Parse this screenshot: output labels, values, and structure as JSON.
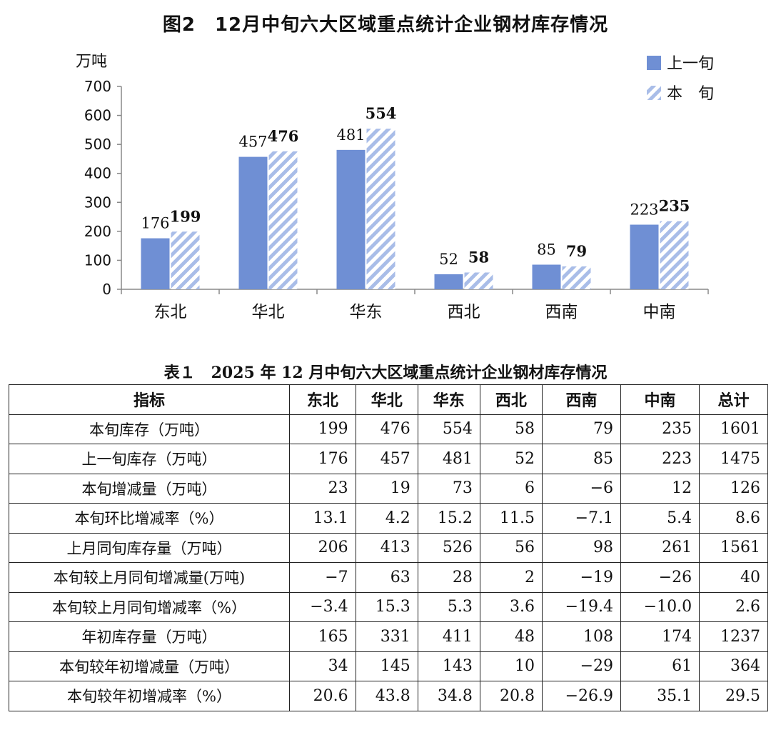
{
  "chart_data": {
    "type": "bar",
    "title": "图2　12月中旬六大区域重点统计企业钢材库存情况",
    "ylabel": "万吨",
    "xlabel": "",
    "ylim": [
      0,
      700
    ],
    "yticks": [
      0,
      100,
      200,
      300,
      400,
      500,
      600,
      700
    ],
    "categories": [
      "东北",
      "华北",
      "华东",
      "西北",
      "西南",
      "中南"
    ],
    "series": [
      {
        "name": "上一旬",
        "values": [
          176,
          457,
          481,
          52,
          85,
          223
        ],
        "color": "#6f8fd4",
        "pattern": "solid"
      },
      {
        "name": "本　旬",
        "values": [
          199,
          476,
          554,
          58,
          79,
          235
        ],
        "color": "#a9bde8",
        "pattern": "hatched"
      }
    ],
    "legend": "top-right",
    "grid": false
  },
  "table": {
    "title": "表１　2025 年 12 月中旬六大区域重点统计企业钢材库存情况",
    "headers": [
      "指标",
      "东北",
      "华北",
      "华东",
      "西北",
      "西南",
      "中南",
      "总计"
    ],
    "rows": [
      [
        "本旬库存（万吨）",
        "199",
        "476",
        "554",
        "58",
        "79",
        "235",
        "1601"
      ],
      [
        "上一旬库存（万吨）",
        "176",
        "457",
        "481",
        "52",
        "85",
        "223",
        "1475"
      ],
      [
        "本旬增减量（万吨）",
        "23",
        "19",
        "73",
        "6",
        "−6",
        "12",
        "126"
      ],
      [
        "本旬环比增减率（%）",
        "13.1",
        "4.2",
        "15.2",
        "11.5",
        "−7.1",
        "5.4",
        "8.6"
      ],
      [
        "上月同旬库存量（万吨）",
        "206",
        "413",
        "526",
        "56",
        "98",
        "261",
        "1561"
      ],
      [
        "本旬较上月同旬增减量(万吨)",
        "−7",
        "63",
        "28",
        "2",
        "−19",
        "−26",
        "40"
      ],
      [
        "本旬较上月同旬增减率（%）",
        "−3.4",
        "15.3",
        "5.3",
        "3.6",
        "−19.4",
        "−10.0",
        "2.6"
      ],
      [
        "年初库存量（万吨）",
        "165",
        "331",
        "411",
        "48",
        "108",
        "174",
        "1237"
      ],
      [
        "本旬较年初增减量（万吨）",
        "34",
        "145",
        "143",
        "10",
        "−29",
        "61",
        "364"
      ],
      [
        "本旬较年初增减率（%）",
        "20.6",
        "43.8",
        "34.8",
        "20.8",
        "−26.9",
        "35.1",
        "29.5"
      ]
    ]
  }
}
